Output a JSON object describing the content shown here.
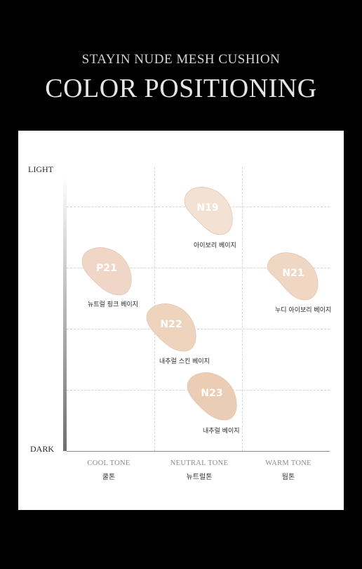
{
  "header": {
    "subtitle": "STAYIN NUDE MESH CUSHION",
    "title": "COLOR POSITIONING"
  },
  "axes": {
    "top_label": "LIGHT",
    "bottom_label": "DARK"
  },
  "columns": [
    {
      "en": "COOL TONE",
      "ko": "쿨톤"
    },
    {
      "en": "NEUTRAL TONE",
      "ko": "뉴트럴톤"
    },
    {
      "en": "WARM TONE",
      "ko": "웜톤"
    }
  ],
  "shades": [
    {
      "code": "N19",
      "name": "아이보리 베이지",
      "color": "#f3e1d3"
    },
    {
      "code": "P21",
      "name": "뉴트럴 핑크 베이지",
      "color": "#f0d6c7"
    },
    {
      "code": "N21",
      "name": "누디 아이보리 베이지",
      "color": "#efd7c3"
    },
    {
      "code": "N22",
      "name": "내추럴 스킨 베이지",
      "color": "#eed3bd"
    },
    {
      "code": "N23",
      "name": "내추럴 베이지",
      "color": "#eacdb4"
    }
  ]
}
